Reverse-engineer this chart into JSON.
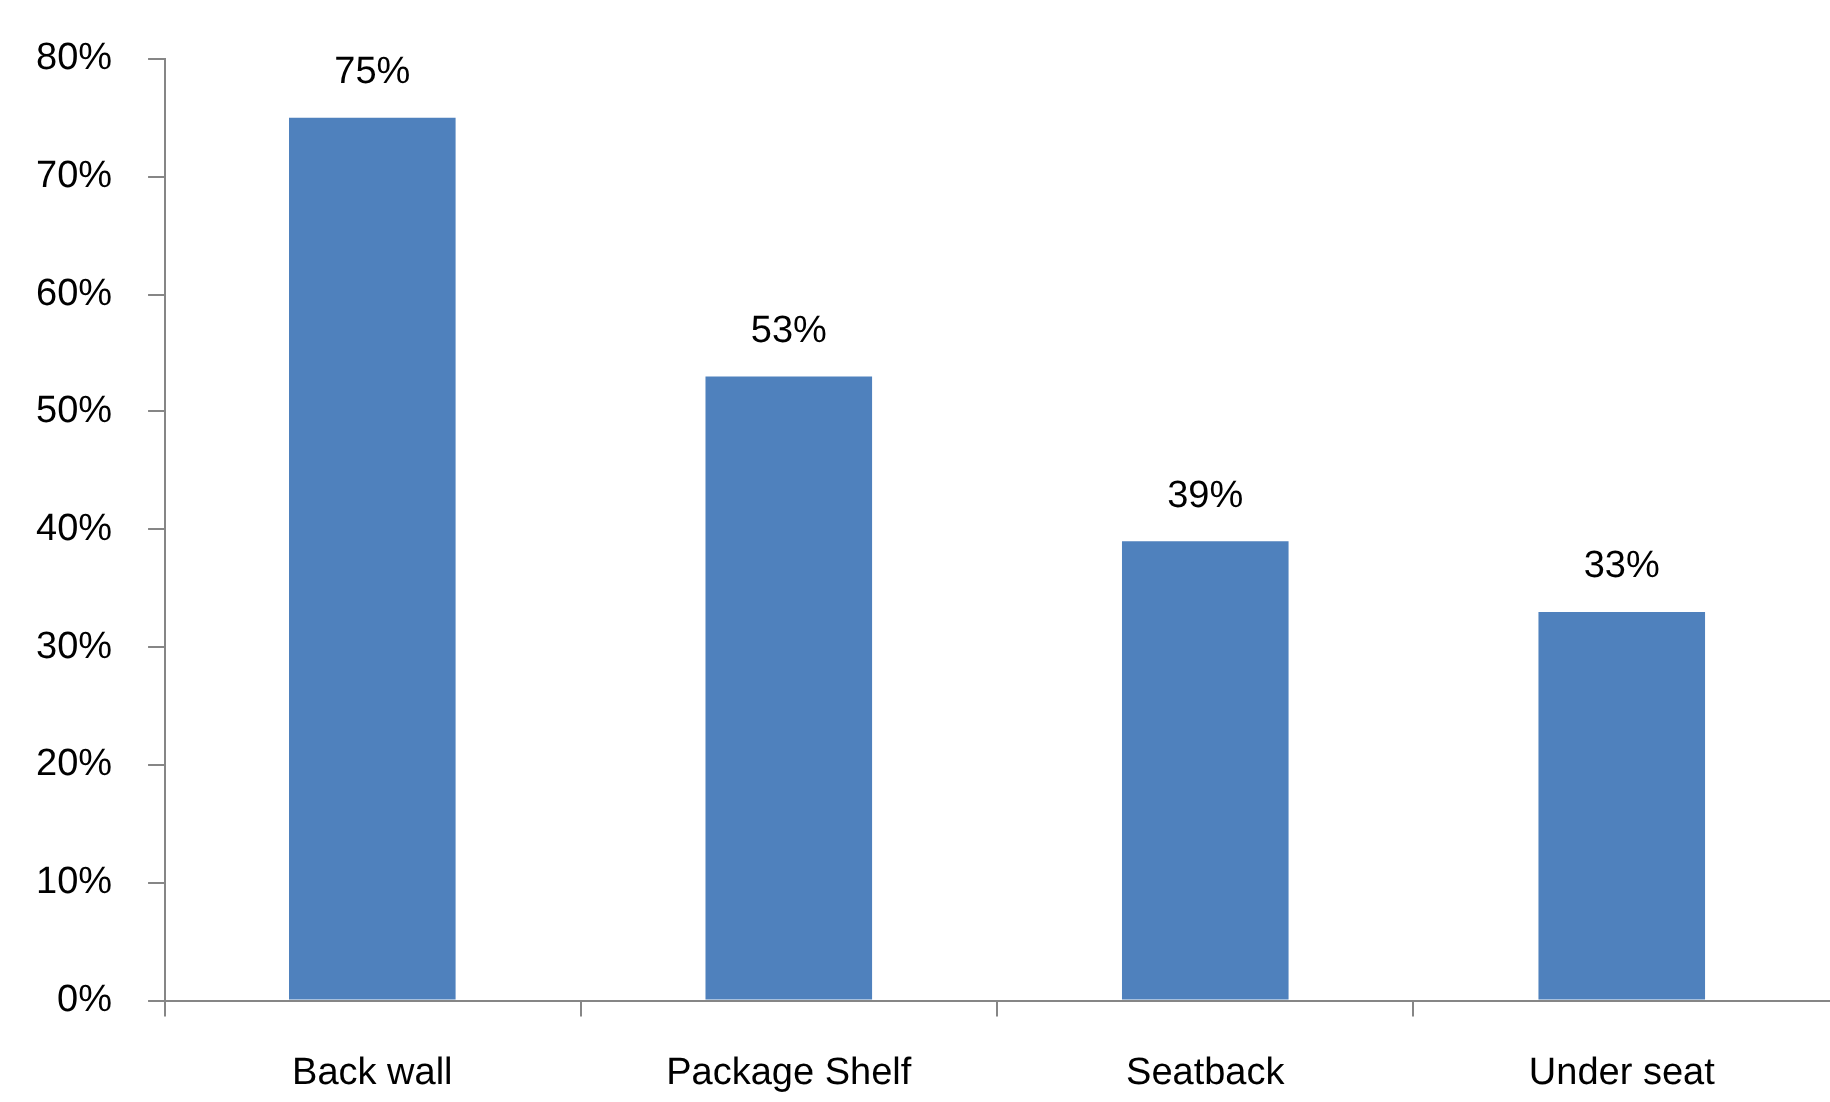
{
  "chart_data": {
    "type": "bar",
    "categories": [
      "Back wall",
      "Package Shelf",
      "Seatback",
      "Under seat"
    ],
    "values": [
      75,
      53,
      39,
      33
    ],
    "color": "#4f81bd",
    "value_labels": [
      "75%",
      "53%",
      "39%",
      "33%"
    ],
    "ylim": [
      0,
      80
    ],
    "yticks": [
      {
        "value": 0,
        "label": "0%"
      },
      {
        "value": 10,
        "label": "10%"
      },
      {
        "value": 20,
        "label": "20%"
      },
      {
        "value": 30,
        "label": "30%"
      },
      {
        "value": 40,
        "label": "40%"
      },
      {
        "value": 50,
        "label": "50%"
      },
      {
        "value": 60,
        "label": "60%"
      },
      {
        "value": 70,
        "label": "70%"
      },
      {
        "value": 80,
        "label": "80%"
      }
    ],
    "grid": false,
    "legend": false
  }
}
